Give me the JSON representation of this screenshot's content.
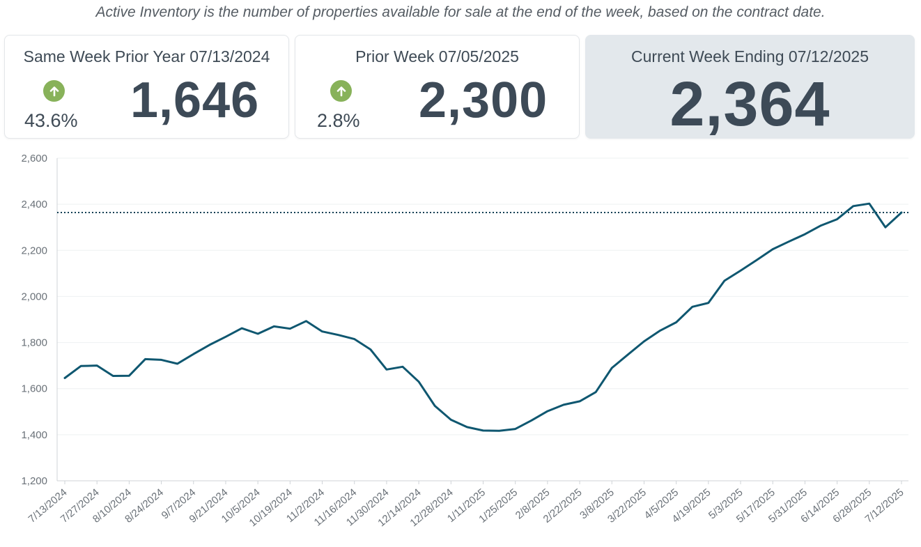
{
  "subtitle": "Active Inventory is the number of properties available for sale at the end of the week, based on the contract date.",
  "cards": {
    "prior_year": {
      "title": "Same Week Prior Year 07/13/2024",
      "value": "1,646",
      "change": "43.6%",
      "change_direction": "up-arrow-icon"
    },
    "prior_week": {
      "title": "Prior Week 07/05/2025",
      "value": "2,300",
      "change": "2.8%",
      "change_direction": "up-arrow-icon"
    },
    "current": {
      "title": "Current Week Ending 07/12/2025",
      "value": "2,364"
    }
  },
  "colors": {
    "line": "#0f5770",
    "arrow": "#88b25a",
    "reference_line": "#0f3d52",
    "current_card": "#e3e8ec"
  },
  "chart_data": {
    "type": "line",
    "title": "",
    "xlabel": "",
    "ylabel": "",
    "ylim": [
      1200,
      2600
    ],
    "yticks": [
      "1,200",
      "1,400",
      "1,600",
      "1,800",
      "2,000",
      "2,200",
      "2,400",
      "2,600"
    ],
    "xtick_labels": [
      "7/13/2024",
      "7/27/2024",
      "8/10/2024",
      "8/24/2024",
      "9/7/2024",
      "9/21/2024",
      "10/5/2024",
      "10/19/2024",
      "11/2/2024",
      "11/16/2024",
      "11/30/2024",
      "12/14/2024",
      "12/28/2024",
      "1/11/2025",
      "1/25/2025",
      "2/8/2025",
      "2/22/2025",
      "3/8/2025",
      "3/22/2025",
      "4/5/2025",
      "4/19/2025",
      "5/3/2025",
      "5/17/2025",
      "5/31/2025",
      "6/14/2025",
      "6/28/2025",
      "7/12/2025"
    ],
    "reference_line": {
      "value": 2364,
      "style": "dotted"
    },
    "grid": true,
    "series": [
      {
        "values": [
          1646,
          1698,
          1700,
          1655,
          1656,
          1728,
          1725,
          1708,
          1750,
          1790,
          1825,
          1862,
          1838,
          1870,
          1860,
          1893,
          1848,
          1833,
          1815,
          1770,
          1683,
          1695,
          1630,
          1525,
          1465,
          1433,
          1418,
          1417,
          1425,
          1462,
          1502,
          1530,
          1545,
          1585,
          1690,
          1748,
          1805,
          1852,
          1888,
          1955,
          1972,
          2068,
          2112,
          2158,
          2205,
          2238,
          2270,
          2308,
          2335,
          2392,
          2403,
          2300,
          2364
        ]
      }
    ]
  }
}
